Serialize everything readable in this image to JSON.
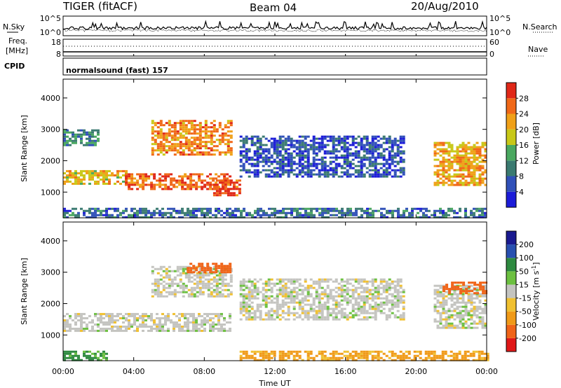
{
  "header": {
    "radar": "TIGER (fitACF)",
    "beam": "Beam 04",
    "date": "20/Aug/2010"
  },
  "sky_panel": {
    "left_label": "N.Sky",
    "right_label": "N.Search",
    "y_ticks": [
      "10^5",
      "10^0"
    ],
    "right_ticks": [
      "10^5",
      "10^0"
    ]
  },
  "freq_panel": {
    "left_label_1": "Freq.",
    "left_label_2": "[MHz]",
    "left_ticks": [
      "18",
      "8"
    ],
    "right_ticks": [
      "60",
      "0"
    ],
    "right_label": "Nave"
  },
  "cpid": {
    "label": "CPID",
    "mode": "normalsound (fast) 157"
  },
  "colors": {
    "power": [
      "#1c1cd8",
      "#3050b8",
      "#3a7a70",
      "#4aa860",
      "#c8c818",
      "#f0a018",
      "#f06818",
      "#e02818"
    ],
    "velocity": [
      "#e01818",
      "#f06418",
      "#f09a18",
      "#f0c030",
      "#c4c4c0",
      "#6cc040",
      "#2e8a40",
      "#2850b0",
      "#1a1a90"
    ]
  },
  "chart_data": [
    {
      "type": "heatmap",
      "title": "",
      "xlabel": "Time UT",
      "ylabel": "Slant Range [km]",
      "xlim": [
        0,
        24
      ],
      "ylim": [
        180,
        4600
      ],
      "x_ticks": [
        "00:00",
        "04:00",
        "08:00",
        "12:00",
        "16:00",
        "20:00",
        "00:00"
      ],
      "y_ticks": [
        1000,
        2000,
        3000,
        4000
      ],
      "colorbar": {
        "label": "Power [dB]",
        "ticks": [
          4,
          8,
          12,
          16,
          20,
          24,
          28
        ],
        "range": [
          0,
          32
        ]
      },
      "regions": [
        {
          "t": [
            0,
            3.5
          ],
          "range": [
            1250,
            1700
          ],
          "power": 20
        },
        {
          "t": [
            3.5,
            9.5
          ],
          "range": [
            1100,
            1600
          ],
          "power": 26
        },
        {
          "t": [
            5.0,
            9.5
          ],
          "range": [
            2200,
            3300
          ],
          "power": 24
        },
        {
          "t": [
            8.5,
            10.0
          ],
          "range": [
            900,
            1400
          ],
          "power": 28
        },
        {
          "t": [
            0,
            2.0
          ],
          "range": [
            2500,
            3000
          ],
          "power": 10
        },
        {
          "t": [
            10.0,
            19.3
          ],
          "range": [
            1500,
            2800
          ],
          "power": 6
        },
        {
          "t": [
            21.0,
            24.0
          ],
          "range": [
            1200,
            2600
          ],
          "power": 22
        },
        {
          "t": [
            0,
            24.0
          ],
          "range": [
            200,
            500
          ],
          "power": 8
        }
      ]
    },
    {
      "type": "heatmap",
      "title": "",
      "xlabel": "Time UT",
      "ylabel": "Slant Range [km]",
      "xlim": [
        0,
        24
      ],
      "ylim": [
        180,
        4600
      ],
      "x_ticks": [
        "00:00",
        "04:00",
        "08:00",
        "12:00",
        "16:00",
        "20:00",
        "00:00"
      ],
      "y_ticks": [
        1000,
        2000,
        3000,
        4000
      ],
      "colorbar": {
        "label": "Velocity [m s^-1]",
        "ticks": [
          200,
          100,
          50,
          15,
          -15,
          -50,
          -100,
          -200
        ],
        "range": [
          -250,
          250
        ]
      },
      "regions": [
        {
          "t": [
            0,
            9.5
          ],
          "range": [
            1100,
            1700
          ],
          "velocity": 0
        },
        {
          "t": [
            5.0,
            9.5
          ],
          "range": [
            2200,
            3200
          ],
          "velocity": 0
        },
        {
          "t": [
            7.0,
            9.5
          ],
          "range": [
            3000,
            3300
          ],
          "velocity": -150
        },
        {
          "t": [
            10.0,
            19.3
          ],
          "range": [
            1500,
            2800
          ],
          "velocity": 0
        },
        {
          "t": [
            21.0,
            24.0
          ],
          "range": [
            1200,
            2600
          ],
          "velocity": 0
        },
        {
          "t": [
            21.5,
            24.0
          ],
          "range": [
            2300,
            2700
          ],
          "velocity": -150
        },
        {
          "t": [
            0,
            2.5
          ],
          "range": [
            200,
            500
          ],
          "velocity": 60
        },
        {
          "t": [
            10.0,
            24.0
          ],
          "range": [
            200,
            500
          ],
          "velocity": -60
        }
      ]
    }
  ]
}
